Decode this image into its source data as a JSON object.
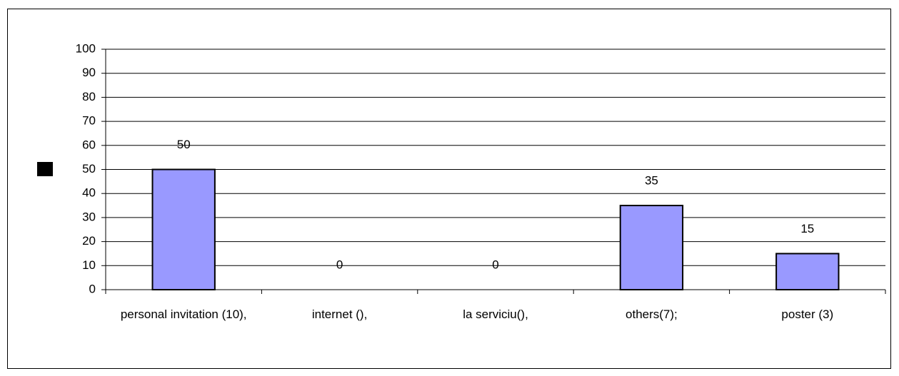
{
  "chart_data": {
    "type": "bar",
    "categories": [
      "personal invitation (10),",
      "internet (),",
      "la serviciu(),",
      "others(7);",
      "poster (3)"
    ],
    "values": [
      50,
      0,
      0,
      35,
      15
    ],
    "color": "#9999ff",
    "ylim": [
      0,
      100
    ],
    "yticks": [
      0,
      10,
      20,
      30,
      40,
      50,
      60,
      70,
      80,
      90,
      100
    ],
    "grid": true
  }
}
